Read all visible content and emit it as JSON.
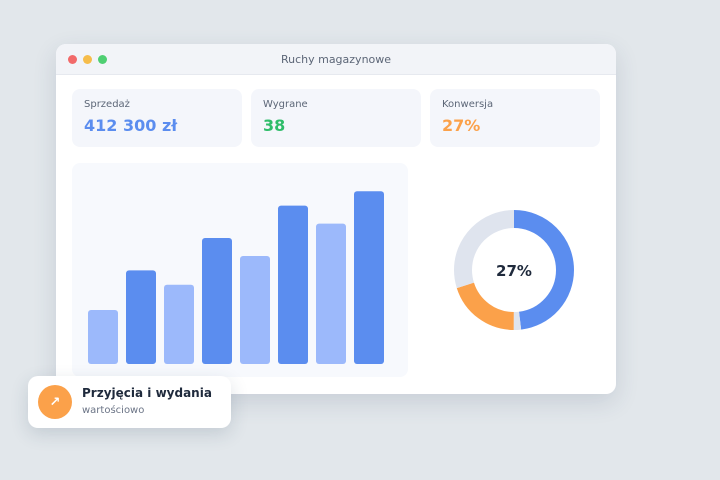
{
  "window": {
    "title": "Ruchy magazynowe"
  },
  "kpis": [
    {
      "label": "Sprzedaż",
      "value": "412 300 zł",
      "color": "#5b8def"
    },
    {
      "label": "Wygrane",
      "value": "38",
      "color": "#2fbd6a"
    },
    {
      "label": "Konwersja",
      "value": "27%",
      "color": "#fba14a"
    }
  ],
  "chart_data": [
    {
      "type": "bar",
      "categories": [
        "",
        "",
        "",
        "",
        "",
        "",
        "",
        ""
      ],
      "values": [
        30,
        52,
        44,
        70,
        60,
        88,
        78,
        96
      ],
      "ylim": [
        0,
        100
      ],
      "bar_colors": [
        "#9cb9fb",
        "#5b8def",
        "#9cb9fb",
        "#5b8def",
        "#9cb9fb",
        "#5b8def",
        "#9cb9fb",
        "#5b8def"
      ]
    },
    {
      "type": "pie",
      "center_label": "27%",
      "slices": [
        {
          "value": 48,
          "color": "#5b8def"
        },
        {
          "value": 2,
          "color": "#dfe4ee"
        },
        {
          "value": 20,
          "color": "#fba14a"
        },
        {
          "value": 30,
          "color": "#dfe4ee"
        }
      ]
    }
  ],
  "toast": {
    "title": "Przyjęcia i wydania",
    "subtitle": "wartościowo",
    "icon": "arrow-up-right-icon",
    "icon_glyph": "↗",
    "icon_color": "#fba14a"
  }
}
